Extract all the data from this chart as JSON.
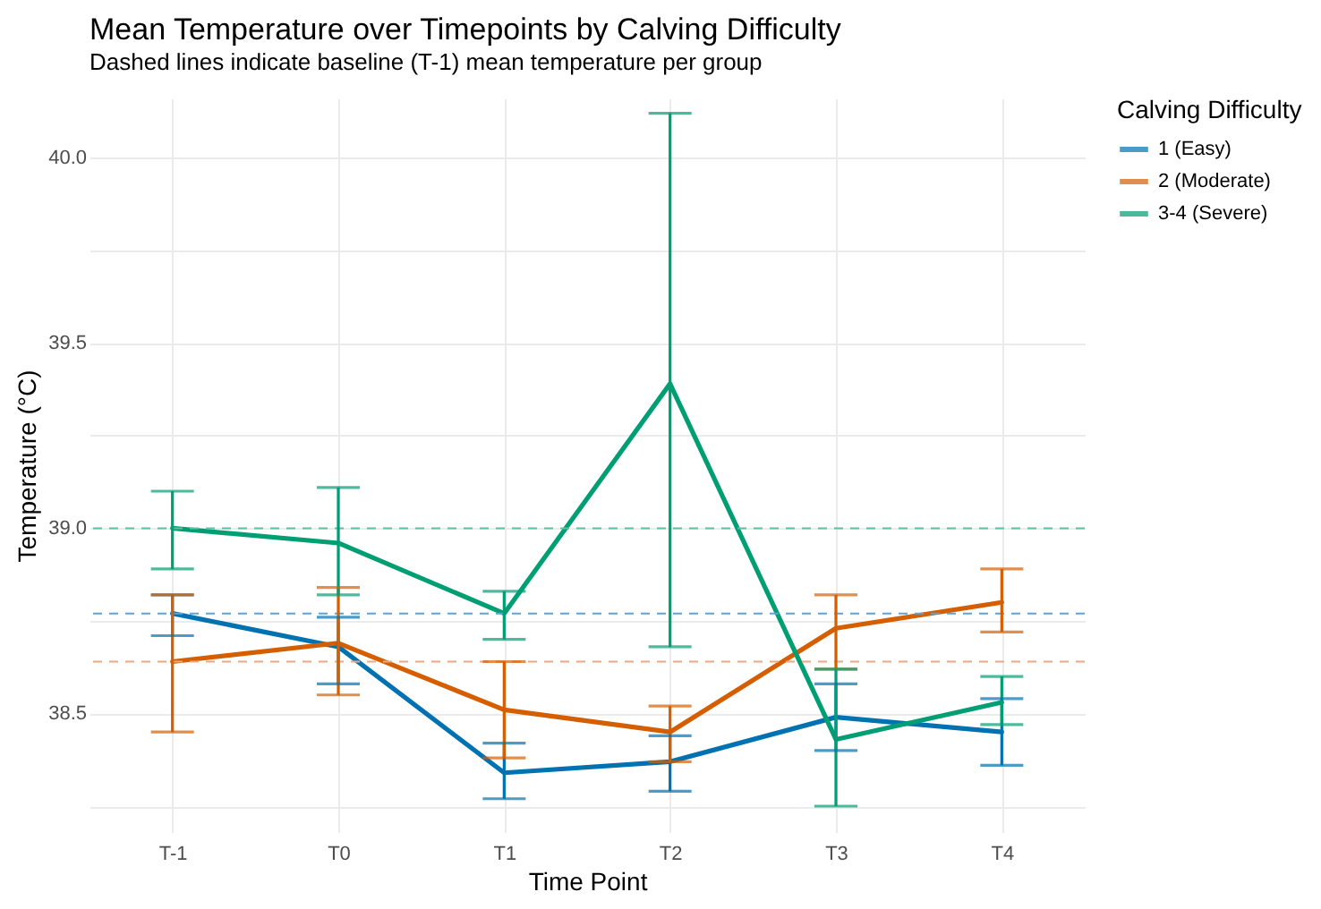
{
  "chart_data": {
    "type": "line",
    "title": "Mean Temperature over Timepoints by Calving Difficulty",
    "subtitle": "Dashed lines indicate baseline (T-1) mean temperature per group",
    "xlabel": "Time Point",
    "ylabel": "Temperature (°C)",
    "legend_title": "Calving Difficulty",
    "categories": [
      "T-1",
      "T0",
      "T1",
      "T2",
      "T3",
      "T4"
    ],
    "series": [
      {
        "name": "1 (Easy)",
        "color": "#0072b2",
        "values": [
          38.77,
          38.68,
          38.34,
          38.37,
          38.49,
          38.45
        ],
        "errors": [
          [
            38.71,
            38.82
          ],
          [
            38.58,
            38.76
          ],
          [
            38.27,
            38.42
          ],
          [
            38.29,
            38.44
          ],
          [
            38.4,
            38.58
          ],
          [
            38.36,
            38.54
          ]
        ]
      },
      {
        "name": "2 (Moderate)",
        "color": "#d55e00",
        "values": [
          38.64,
          38.69,
          38.51,
          38.45,
          38.73,
          38.8
        ],
        "errors": [
          [
            38.45,
            38.82
          ],
          [
            38.55,
            38.84
          ],
          [
            38.38,
            38.64
          ],
          [
            38.37,
            38.52
          ],
          [
            38.62,
            38.82
          ],
          [
            38.72,
            38.89
          ]
        ]
      },
      {
        "name": "3-4 (Severe)",
        "color": "#009e73",
        "values": [
          39.0,
          38.96,
          38.77,
          39.39,
          38.43,
          38.53
        ],
        "errors": [
          [
            38.89,
            39.1
          ],
          [
            38.82,
            39.11
          ],
          [
            38.7,
            38.83
          ],
          [
            38.68,
            40.12
          ],
          [
            38.25,
            38.62
          ],
          [
            38.47,
            38.6
          ]
        ]
      }
    ],
    "ylim": [
      38.18,
      40.16
    ],
    "yticks": [
      {
        "value": 38.25,
        "label": null
      },
      38.5,
      {
        "value": 38.75,
        "label": null
      },
      {
        "value": 39,
        "label": "39.0"
      },
      {
        "value": 39.25,
        "label": null
      },
      39.5,
      {
        "value": 39.75,
        "label": null
      },
      {
        "value": 40,
        "label": "40.0"
      }
    ],
    "ref_lines": [
      {
        "axis": "y",
        "value": 38.77,
        "color": "#5ea3d3",
        "line_style": "dashed"
      },
      {
        "axis": "y",
        "value": 38.64,
        "color": "#eba884",
        "line_style": "dashed"
      },
      {
        "axis": "y",
        "value": 39.0,
        "color": "#5fbf9f",
        "line_style": "dashed"
      }
    ],
    "grid": true,
    "legend": "right"
  }
}
